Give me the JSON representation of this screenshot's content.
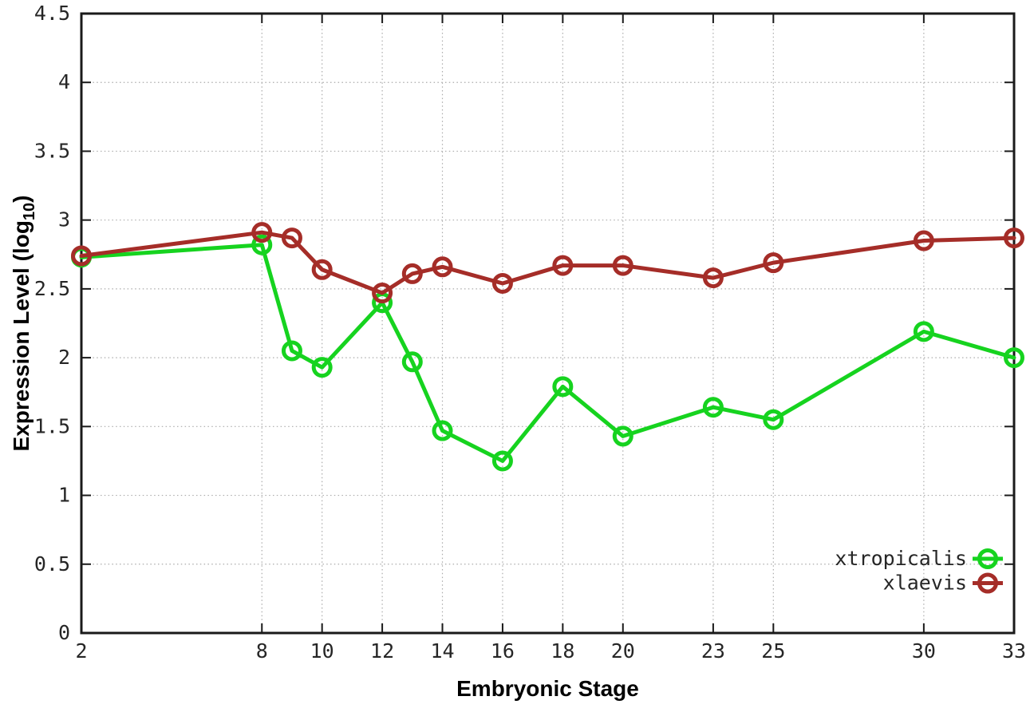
{
  "chart_data": {
    "type": "line",
    "title": "",
    "xlabel": "Embryonic Stage",
    "ylabel": {
      "main": "Expression Level (log",
      "subscript": "10",
      "after": ")"
    },
    "xlim": [
      2,
      33
    ],
    "ylim": [
      0,
      4.5
    ],
    "grid": true,
    "x": [
      2,
      8,
      9,
      10,
      12,
      13,
      14,
      16,
      18,
      20,
      23,
      25,
      30,
      33
    ],
    "x_ticks": [
      {
        "value": 2,
        "label": "2"
      },
      {
        "value": 8,
        "label": "8"
      },
      {
        "value": 10,
        "label": "10"
      },
      {
        "value": 12,
        "label": "12"
      },
      {
        "value": 14,
        "label": "14"
      },
      {
        "value": 16,
        "label": "16"
      },
      {
        "value": 18,
        "label": "18"
      },
      {
        "value": 20,
        "label": "20"
      },
      {
        "value": 23,
        "label": "23"
      },
      {
        "value": 25,
        "label": "25"
      },
      {
        "value": 30,
        "label": "30"
      },
      {
        "value": 33,
        "label": "33"
      }
    ],
    "y_ticks": [
      {
        "value": 0,
        "label": "0"
      },
      {
        "value": 0.5,
        "label": "0.5"
      },
      {
        "value": 1,
        "label": "1"
      },
      {
        "value": 1.5,
        "label": "1.5"
      },
      {
        "value": 2,
        "label": "2"
      },
      {
        "value": 2.5,
        "label": "2.5"
      },
      {
        "value": 3,
        "label": "3"
      },
      {
        "value": 3.5,
        "label": "3.5"
      },
      {
        "value": 4,
        "label": "4"
      },
      {
        "value": 4.5,
        "label": "4.5"
      }
    ],
    "series": [
      {
        "name": "xtropicalis",
        "color": "#16d31f",
        "marker": "open-circle",
        "values": [
          2.73,
          2.82,
          2.05,
          1.93,
          2.4,
          1.97,
          1.47,
          1.25,
          1.79,
          1.43,
          1.64,
          1.55,
          2.19,
          2.0
        ]
      },
      {
        "name": "xlaevis",
        "color": "#a52d28",
        "marker": "open-circle",
        "values": [
          2.74,
          2.91,
          2.87,
          2.64,
          2.47,
          2.61,
          2.66,
          2.54,
          2.67,
          2.67,
          2.58,
          2.69,
          2.85,
          2.87
        ]
      }
    ],
    "legend": {
      "position": "bottom-right",
      "entries": [
        "xtropicalis",
        "xlaevis"
      ]
    },
    "colors": {
      "axis": "#1a1a1a",
      "grid": "#ababab",
      "text": "#262626",
      "background": "#ffffff"
    }
  }
}
